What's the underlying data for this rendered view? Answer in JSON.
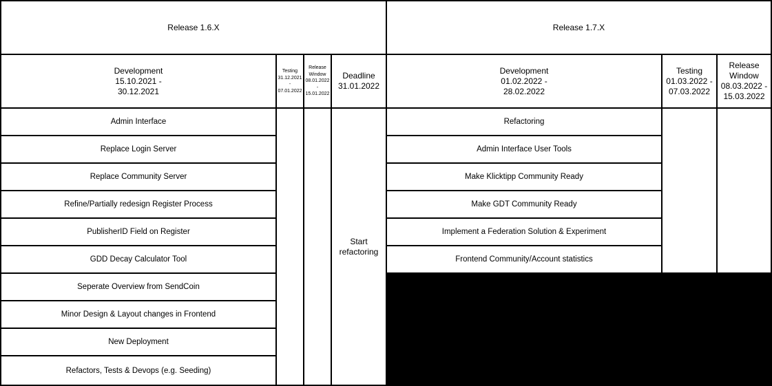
{
  "colors": {
    "border": "#000000",
    "cell_background": "#ffffff",
    "text": "#000000",
    "redacted_block": "#000000"
  },
  "left": {
    "title": "Release 1.6.X",
    "development_header": "Development\n15.10.2021 -\n30.12.2021",
    "testing_header": "Testing\n31.12.2021\n-\n07.01.2022",
    "release_window_header": "Release\nWindow\n08.01.2022\n-\n15.01.2022",
    "deadline_header": "Deadline\n31.01.2022",
    "deadline_note": "Start\nrefactoring",
    "tasks": [
      "Admin Interface",
      "Replace Login Server",
      "Replace Community Server",
      "Refine/Partially redesign Register Process",
      "PublisherID Field on Register",
      "GDD Decay Calculator Tool",
      "Seperate Overview from SendCoin",
      "Minor Design & Layout changes in Frontend",
      "New Deployment",
      "Refactors, Tests & Devops (e.g. Seeding)"
    ]
  },
  "right": {
    "title": "Release 1.7.X",
    "development_header": "Development\n01.02.2022 -\n28.02.2022",
    "testing_header": "Testing\n01.03.2022 -\n07.03.2022",
    "release_window_header": "Release\nWindow\n08.03.2022 -\n15.03.2022",
    "tasks": [
      "Refactoring",
      "Admin Interface User Tools",
      "Make Klicktipp Community Ready",
      "Make GDT Community Ready",
      "Implement a Federation Solution & Experiment",
      "Frontend Community/Account statistics"
    ]
  }
}
